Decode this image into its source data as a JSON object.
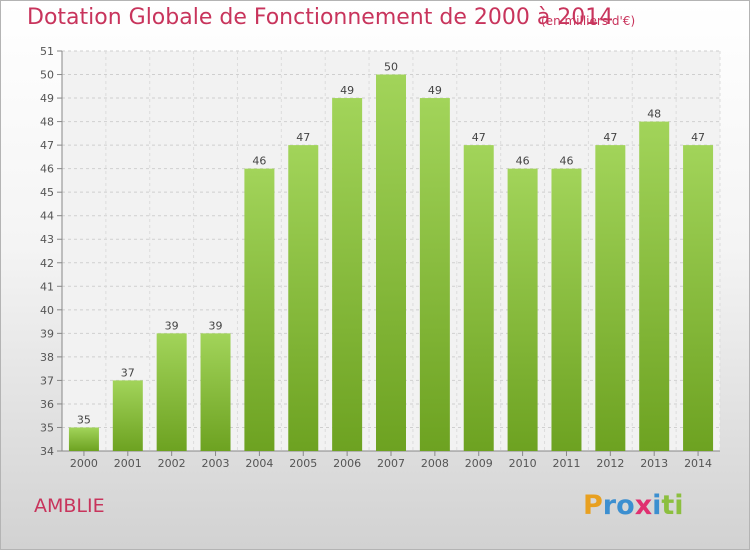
{
  "chart_data": {
    "type": "bar",
    "title": "Dotation Globale de Fonctionnement de 2000 à 2014",
    "unit": "(en milliers d'€)",
    "categories": [
      "2000",
      "2001",
      "2002",
      "2003",
      "2004",
      "2005",
      "2006",
      "2007",
      "2008",
      "2009",
      "2010",
      "2011",
      "2012",
      "2013",
      "2014"
    ],
    "values": [
      35,
      37,
      39,
      39,
      46,
      47,
      49,
      50,
      49,
      47,
      46,
      46,
      47,
      48,
      47
    ],
    "ylim": [
      34,
      51
    ],
    "yticks": [
      34,
      35,
      36,
      37,
      38,
      39,
      40,
      41,
      42,
      43,
      44,
      45,
      46,
      47,
      48,
      49,
      50,
      51
    ],
    "grid": true,
    "colors": {
      "bar_light": "#a2d45a",
      "bar_dark": "#6da221",
      "title": "#c8345c"
    }
  },
  "commune": "AMBLIE",
  "logo": {
    "letters": [
      "P",
      "r",
      "o",
      "x",
      "i",
      "t",
      "i"
    ],
    "colors": [
      "#e8a020",
      "#3c8fd0",
      "#3c8fd0",
      "#e03070",
      "#3c8fd0",
      "#8cbf3f",
      "#8cbf3f"
    ]
  }
}
